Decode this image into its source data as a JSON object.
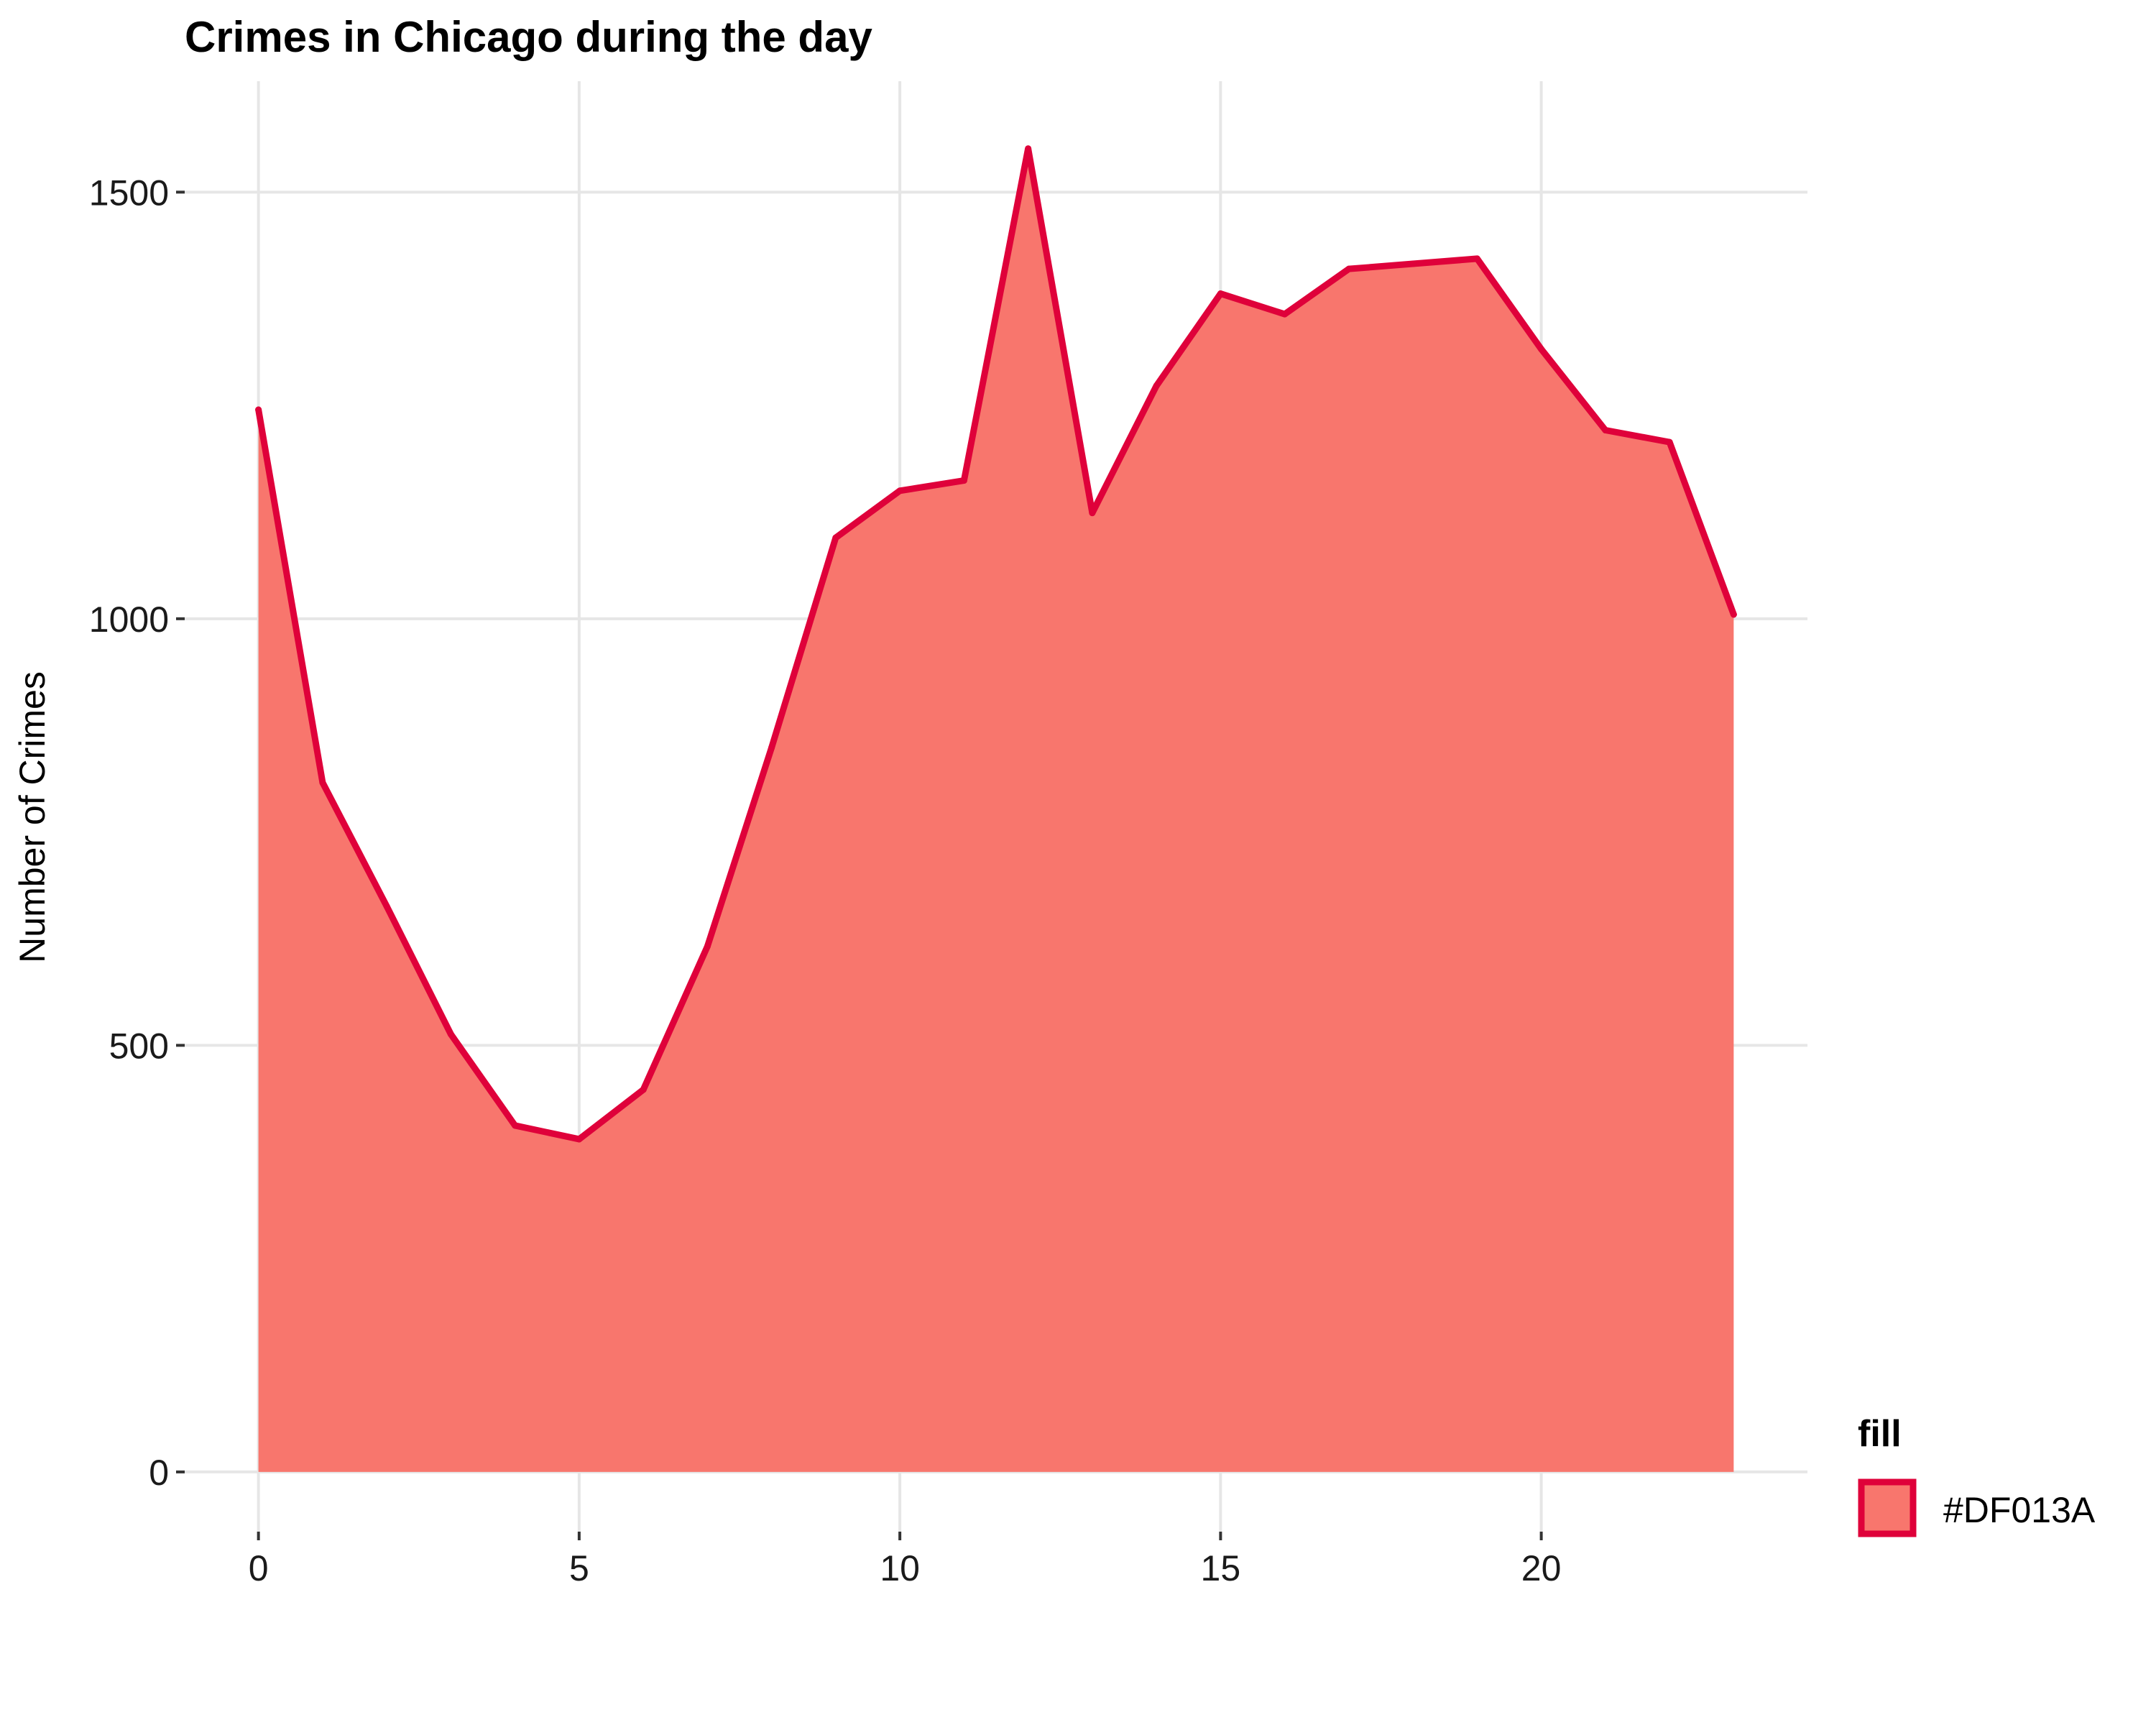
{
  "chart_data": {
    "type": "area",
    "title": "Crimes in Chicago during the day",
    "xlabel": "",
    "ylabel": "Number of Crimes",
    "x": [
      0,
      1,
      2,
      3,
      4,
      5,
      6,
      7,
      8,
      9,
      10,
      11,
      12,
      13,
      14,
      15,
      16,
      17,
      18,
      19,
      20,
      21,
      22,
      23
    ],
    "values": [
      1245,
      808,
      663,
      513,
      406,
      390,
      448,
      616,
      849,
      1095,
      1150,
      1162,
      1551,
      1124,
      1273,
      1381,
      1357,
      1410,
      1416,
      1422,
      1316,
      1221,
      1207,
      1005
    ],
    "xlim": [
      -1.15,
      24.15
    ],
    "ylim": [
      -70,
      1630
    ],
    "xticks": [
      0,
      5,
      10,
      15,
      20
    ],
    "yticks": [
      0,
      500,
      1000,
      1500
    ],
    "grid": true,
    "legend": {
      "title": "fill",
      "label": "#DF013A",
      "position": "right"
    },
    "colors": {
      "fill": "#F8766D",
      "line": "#DF013A",
      "grid": "#E6E6E6"
    }
  }
}
